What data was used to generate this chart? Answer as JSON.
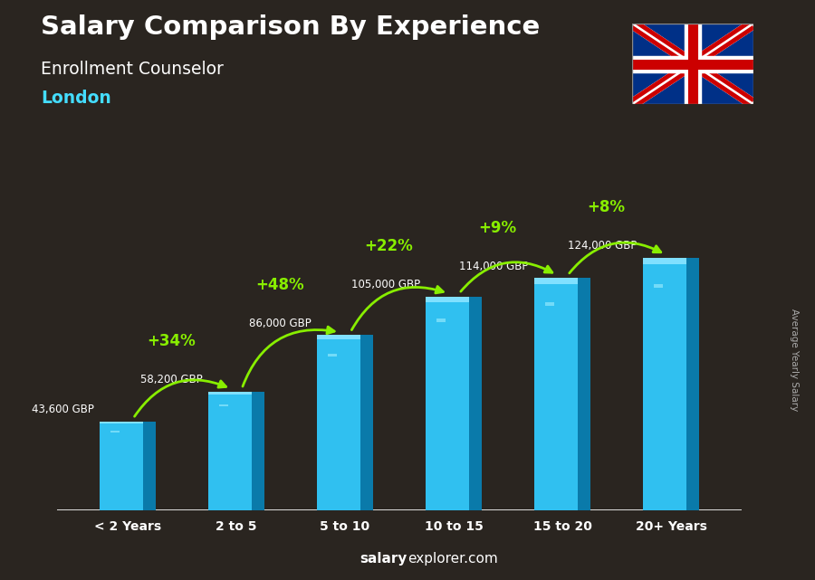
{
  "title": "Salary Comparison By Experience",
  "subtitle": "Enrollment Counselor",
  "location": "London",
  "categories": [
    "< 2 Years",
    "2 to 5",
    "5 to 10",
    "10 to 15",
    "15 to 20",
    "20+ Years"
  ],
  "values": [
    43600,
    58200,
    86000,
    105000,
    114000,
    124000
  ],
  "labels": [
    "43,600 GBP",
    "58,200 GBP",
    "86,000 GBP",
    "105,000 GBP",
    "114,000 GBP",
    "124,000 GBP"
  ],
  "pct_changes": [
    "+34%",
    "+48%",
    "+22%",
    "+9%",
    "+8%"
  ],
  "bar_color_face": "#30c0f0",
  "bar_color_dark": "#0a7aaa",
  "bar_color_light": "#80e0ff",
  "bar_color_top": "#60d8ff",
  "bg_color": "#2a2520",
  "title_color": "#ffffff",
  "subtitle_color": "#ffffff",
  "location_color": "#44ddff",
  "label_color": "#ffffff",
  "pct_color": "#88ee00",
  "arrow_color": "#88ee00",
  "ylabel": "Average Yearly Salary",
  "ylim_max": 148000,
  "bar_width": 0.52,
  "footer_salary_color": "#ffffff",
  "footer_explorer_color": "#ffffff"
}
